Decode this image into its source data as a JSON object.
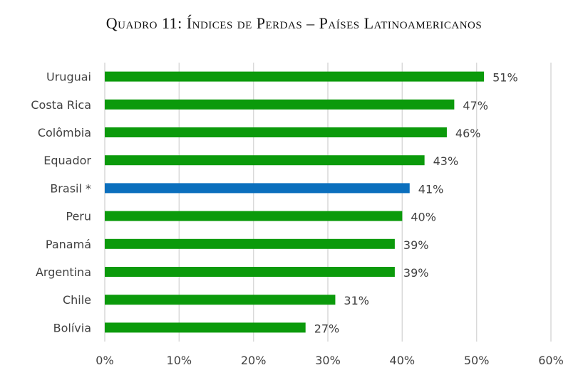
{
  "chart_data": {
    "type": "bar",
    "orientation": "horizontal",
    "title": "Quadro 11: Índices de Perdas – Países Latinoamericanos",
    "categories": [
      "Uruguai",
      "Costa Rica",
      "Colômbia",
      "Equador",
      "Brasil *",
      "Peru",
      "Panamá",
      "Argentina",
      "Chile",
      "Bolívia"
    ],
    "values": [
      0.51,
      0.47,
      0.46,
      0.43,
      0.41,
      0.4,
      0.39,
      0.39,
      0.31,
      0.27
    ],
    "data_labels": [
      "51%",
      "47%",
      "46%",
      "43%",
      "41%",
      "40%",
      "39%",
      "39%",
      "31%",
      "27%"
    ],
    "xlim": [
      0,
      0.6
    ],
    "x_ticks": [
      0,
      0.1,
      0.2,
      0.3,
      0.4,
      0.5,
      0.6
    ],
    "x_tick_labels": [
      "0%",
      "10%",
      "20%",
      "30%",
      "40%",
      "50%",
      "60%"
    ],
    "grid": "vertical",
    "colors": {
      "default": "#0b9a0b",
      "highlight": "#0b6fbd",
      "highlight_category": "Brasil *",
      "gridline": "#d9d9d9",
      "text": "#404040"
    }
  }
}
